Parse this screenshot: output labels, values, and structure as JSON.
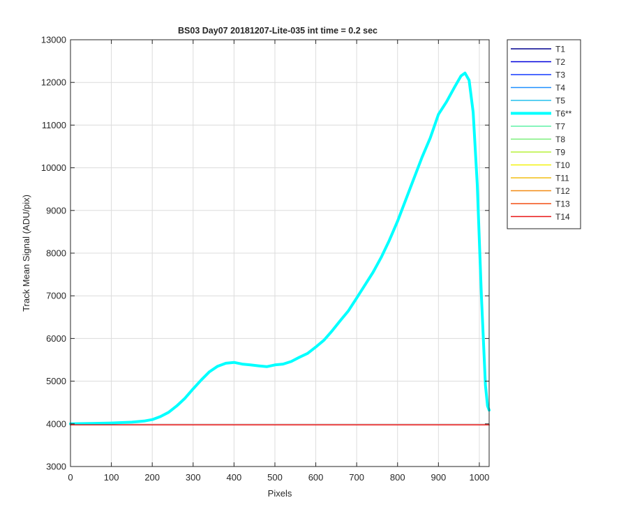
{
  "chart_data": {
    "type": "line",
    "title": "BS03 Day07 20181207-Lite-035 int time = 0.2 sec",
    "xlabel": "Pixels",
    "ylabel": "Track Mean Signal (ADU/pix)",
    "xlim": [
      0,
      1024
    ],
    "ylim": [
      3000,
      13000
    ],
    "xticks": [
      0,
      100,
      200,
      300,
      400,
      500,
      600,
      700,
      800,
      900,
      1000
    ],
    "yticks": [
      3000,
      4000,
      5000,
      6000,
      7000,
      8000,
      9000,
      10000,
      11000,
      12000,
      13000
    ],
    "grid": true,
    "legend_position": "outside-top-right",
    "series": [
      {
        "name": "T1",
        "color": "#00008f",
        "highlight": false,
        "x": [
          0,
          1024
        ],
        "y": [
          3975,
          3975
        ]
      },
      {
        "name": "T2",
        "color": "#0000dc",
        "highlight": false,
        "x": [
          0,
          1024
        ],
        "y": [
          3975,
          3975
        ]
      },
      {
        "name": "T3",
        "color": "#1238ff",
        "highlight": false,
        "x": [
          0,
          1024
        ],
        "y": [
          3975,
          3975
        ]
      },
      {
        "name": "T4",
        "color": "#1f8fff",
        "highlight": false,
        "x": [
          0,
          1024
        ],
        "y": [
          3975,
          3975
        ]
      },
      {
        "name": "T5",
        "color": "#24c0ee",
        "highlight": false,
        "x": [
          0,
          1024
        ],
        "y": [
          3975,
          3975
        ]
      },
      {
        "name": "T6**",
        "color": "#00ffff",
        "highlight": true,
        "x": [
          0,
          50,
          100,
          150,
          180,
          200,
          220,
          240,
          260,
          280,
          300,
          320,
          340,
          360,
          380,
          400,
          420,
          440,
          460,
          480,
          500,
          520,
          540,
          560,
          580,
          600,
          620,
          640,
          660,
          680,
          700,
          720,
          740,
          760,
          780,
          800,
          820,
          840,
          860,
          880,
          900,
          920,
          940,
          955,
          965,
          975,
          985,
          995,
          1005,
          1015,
          1020,
          1024
        ],
        "y": [
          4000,
          4010,
          4020,
          4040,
          4065,
          4100,
          4170,
          4270,
          4420,
          4600,
          4820,
          5030,
          5220,
          5350,
          5420,
          5440,
          5400,
          5380,
          5360,
          5340,
          5380,
          5400,
          5460,
          5560,
          5650,
          5800,
          5960,
          6180,
          6420,
          6650,
          6950,
          7250,
          7550,
          7900,
          8300,
          8750,
          9250,
          9750,
          10250,
          10700,
          11250,
          11550,
          11900,
          12150,
          12220,
          12050,
          11300,
          9600,
          7000,
          4900,
          4420,
          4320
        ]
      },
      {
        "name": "T7",
        "color": "#5ef0a6",
        "highlight": false,
        "x": [
          0,
          1024
        ],
        "y": [
          3975,
          3975
        ]
      },
      {
        "name": "T8",
        "color": "#7af07a",
        "highlight": false,
        "x": [
          0,
          1024
        ],
        "y": [
          3975,
          3975
        ]
      },
      {
        "name": "T9",
        "color": "#b7f23a",
        "highlight": false,
        "x": [
          0,
          1024
        ],
        "y": [
          3975,
          3975
        ]
      },
      {
        "name": "T10",
        "color": "#f2f20f",
        "highlight": false,
        "x": [
          0,
          1024
        ],
        "y": [
          3975,
          3975
        ]
      },
      {
        "name": "T11",
        "color": "#f2be14",
        "highlight": false,
        "x": [
          0,
          1024
        ],
        "y": [
          3975,
          3975
        ]
      },
      {
        "name": "T12",
        "color": "#f28a14",
        "highlight": false,
        "x": [
          0,
          1024
        ],
        "y": [
          3975,
          3975
        ]
      },
      {
        "name": "T13",
        "color": "#f24e14",
        "highlight": false,
        "x": [
          0,
          1024
        ],
        "y": [
          3975,
          3975
        ]
      },
      {
        "name": "T14",
        "color": "#e81414",
        "highlight": false,
        "x": [
          0,
          1024
        ],
        "y": [
          3975,
          3975
        ]
      }
    ]
  }
}
